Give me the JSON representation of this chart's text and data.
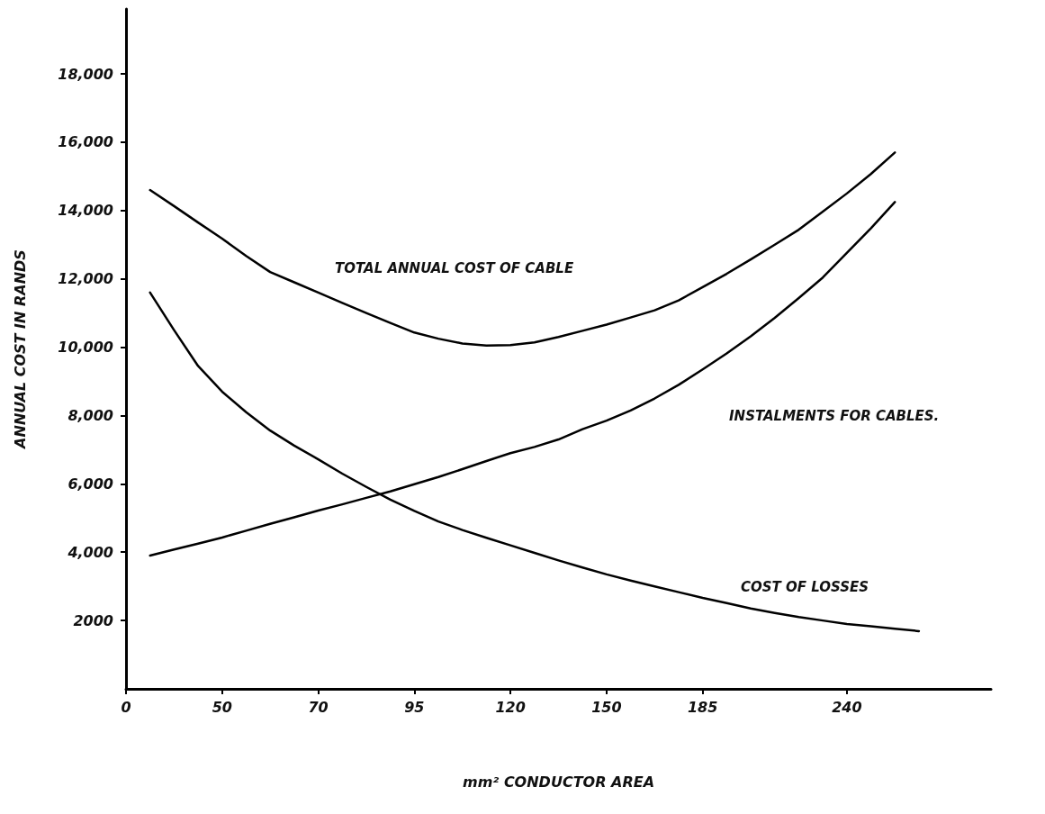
{
  "chart_data": {
    "type": "line",
    "xlabel": "mm² CONDUCTOR AREA",
    "ylabel": "ANNUAL COST IN RANDS",
    "categories": [
      "0",
      null,
      null,
      null,
      "50",
      null,
      null,
      null,
      "70",
      null,
      null,
      null,
      "95",
      null,
      null,
      null,
      "120",
      null,
      null,
      null,
      "150",
      null,
      null,
      null,
      "185",
      null,
      null,
      null,
      null,
      null,
      "240",
      null,
      null,
      null,
      null,
      null,
      null
    ],
    "ylim": [
      0,
      19900
    ],
    "yticks": [
      {
        "value": 2000,
        "label": "2000"
      },
      {
        "value": 4000,
        "label": "4,000"
      },
      {
        "value": 6000,
        "label": "6,000"
      },
      {
        "value": 8000,
        "label": "8,000"
      },
      {
        "value": 10000,
        "label": "10,000"
      },
      {
        "value": 12000,
        "label": "12,000"
      },
      {
        "value": 14000,
        "label": "14,000"
      },
      {
        "value": 16000,
        "label": "16,000"
      },
      {
        "value": 18000,
        "label": "18,000"
      }
    ],
    "grid": false,
    "marker": "none",
    "line_style": "solid",
    "series": [
      {
        "color": "#000000",
        "values": [
          null,
          14600,
          14130,
          13650,
          13180,
          12670,
          12200,
          11900,
          11600,
          11300,
          11000,
          10710,
          10430,
          10250,
          10110,
          10050,
          10060,
          10140,
          10300,
          10480,
          10660,
          10870,
          11080,
          11370,
          11760,
          12150,
          12570,
          13000,
          13440,
          13970,
          14500,
          15070,
          15700,
          null,
          null,
          null,
          null
        ]
      },
      {
        "color": "#000000",
        "values": [
          null,
          3900,
          4080,
          4250,
          4430,
          4630,
          4830,
          5020,
          5220,
          5400,
          5590,
          5780,
          5990,
          6200,
          6430,
          6670,
          6900,
          7080,
          7300,
          7600,
          7850,
          8150,
          8500,
          8900,
          9350,
          9820,
          10320,
          10860,
          11440,
          12040,
          12760,
          13480,
          14250,
          null,
          null,
          null,
          null
        ]
      },
      {
        "color": "#000000",
        "values": [
          null,
          11600,
          10500,
          9450,
          8700,
          8100,
          7560,
          7120,
          6720,
          6300,
          5910,
          5540,
          5210,
          4900,
          4650,
          4420,
          4200,
          3980,
          3760,
          3550,
          3350,
          3170,
          3000,
          2830,
          2660,
          2510,
          2350,
          2220,
          2100,
          2000,
          1900,
          1830,
          1760,
          1690,
          null,
          null,
          null
        ]
      }
    ],
    "annotations": [
      "TOTAL ANNUAL COST OF CABLE",
      "INSTALMENTS FOR CABLES.",
      "COST OF LOSSES"
    ]
  }
}
